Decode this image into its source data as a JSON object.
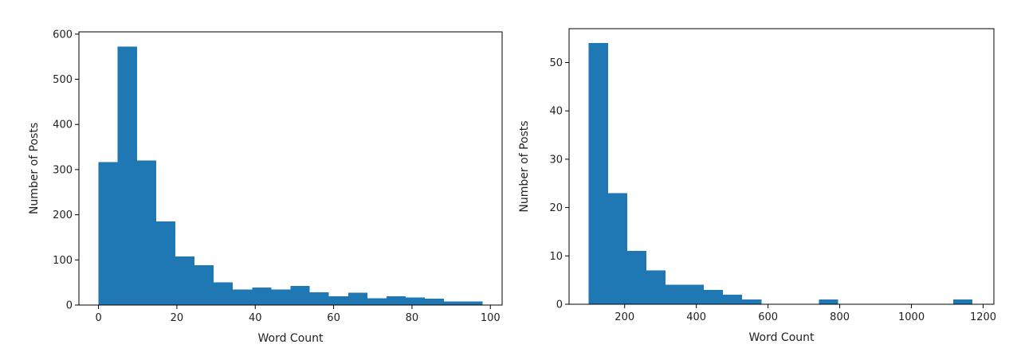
{
  "chart_data": [
    {
      "type": "bar",
      "xlabel": "Word Count",
      "ylabel": "Number of Posts",
      "xlim": [
        -5,
        103
      ],
      "ylim": [
        0,
        605
      ],
      "xticks": [
        0,
        20,
        40,
        60,
        80,
        100
      ],
      "yticks": [
        0,
        100,
        200,
        300,
        400,
        500,
        600
      ],
      "bin_edges": [
        0,
        4.9,
        9.8,
        14.7,
        19.6,
        24.5,
        29.4,
        34.3,
        39.2,
        44.1,
        49,
        53.9,
        58.8,
        63.7,
        68.6,
        73.5,
        78.4,
        83.3,
        88.2,
        93.1,
        98
      ],
      "values": [
        317,
        572,
        320,
        185,
        108,
        88,
        50,
        34,
        39,
        34,
        42,
        28,
        19,
        27,
        15,
        19,
        17,
        14,
        8,
        8
      ],
      "color": "#1f77b4"
    },
    {
      "type": "bar",
      "xlabel": "Word Count",
      "ylabel": "Number of Posts",
      "xlim": [
        45,
        1230
      ],
      "ylim": [
        0,
        57
      ],
      "xticks": [
        200,
        400,
        600,
        800,
        1000,
        1200
      ],
      "yticks": [
        0,
        10,
        20,
        30,
        40,
        50
      ],
      "bin_edges": [
        100,
        153.5,
        207,
        260.5,
        314,
        367.5,
        421,
        474.5,
        528,
        581.5,
        635,
        688.5,
        742,
        795.5,
        849,
        902.5,
        956,
        1009.5,
        1063,
        1116.5,
        1170
      ],
      "values": [
        54,
        23,
        11,
        7,
        4,
        4,
        3,
        2,
        1,
        0,
        0,
        0,
        1,
        0,
        0,
        0,
        0,
        0,
        0,
        1
      ],
      "color": "#1f77b4"
    }
  ]
}
